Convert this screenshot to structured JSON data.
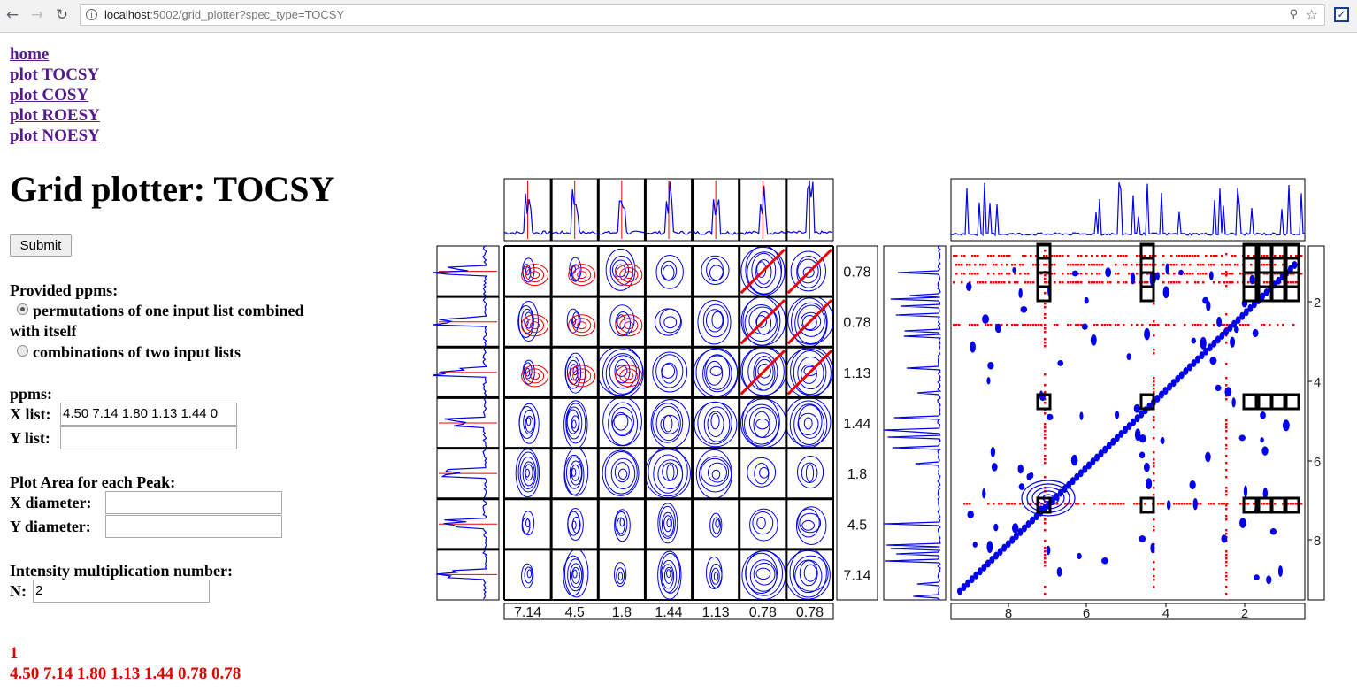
{
  "browser": {
    "url_host": "localhost",
    "url_rest": ":5002/grid_plotter?spec_type=TOCSY"
  },
  "nav": {
    "links": [
      "home",
      "plot TOCSY",
      "plot COSY",
      "plot ROESY",
      "plot NOESY"
    ]
  },
  "title": "Grid plotter: TOCSY",
  "form": {
    "submit_label": "Submit",
    "provided_label": "Provided ppms:",
    "option_perm_line1": "permutations of one input list combined",
    "option_perm_line2": "with itself",
    "option_comb": "combinations of two input lists",
    "ppms_label": "ppms:",
    "x_list_label": "X list:",
    "x_list_value": "4.50 7.14 1.80 1.13 1.44 0",
    "y_list_label": "Y list:",
    "y_list_value": "",
    "plot_area_label": "Plot Area for each Peak:",
    "x_diameter_label": "X diameter:",
    "x_diameter_value": "",
    "y_diameter_label": "Y diameter:",
    "y_diameter_value": "",
    "intensity_label": "Intensity multiplication number:",
    "n_label": "N:",
    "n_value": "2"
  },
  "output": {
    "line1": "1",
    "line2": "4.50 7.14 1.80 1.13 1.44 0.78 0.78"
  },
  "grid_plot": {
    "x_labels": [
      "7.14",
      "4.5",
      "1.8",
      "1.44",
      "1.13",
      "0.78",
      "0.78"
    ],
    "y_labels": [
      "0.78",
      "0.78",
      "1.13",
      "1.44",
      "1.8",
      "4.5",
      "7.14"
    ]
  },
  "full_plot": {
    "x_ticks": [
      "8",
      "6",
      "4",
      "2"
    ],
    "y_ticks": [
      "2",
      "4",
      "6",
      "8"
    ]
  },
  "colors": {
    "positive_contour": "#0000ee",
    "negative_contour": "#ee0000",
    "link": "#551a8b",
    "output": "#e00000"
  }
}
